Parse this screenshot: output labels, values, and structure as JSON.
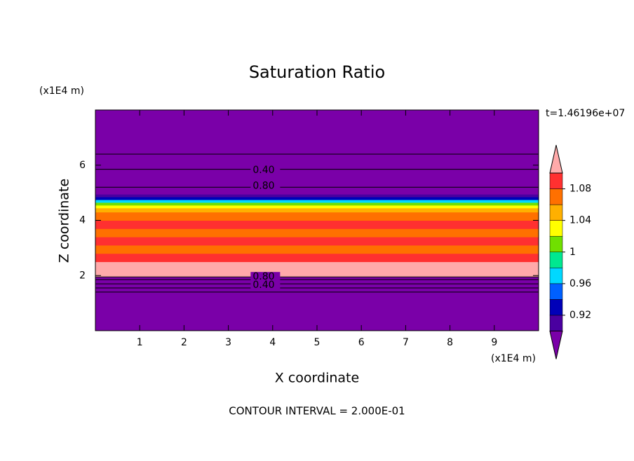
{
  "chart_data": {
    "type": "contour",
    "title": "Saturation Ratio",
    "xlabel": "X coordinate",
    "ylabel": "Z coordinate",
    "x_unit": "(x1E4 m)",
    "y_unit": "(x1E4 m)",
    "time_label": "t=1.46196e+07",
    "footer": "CONTOUR INTERVAL = 2.000E-01",
    "xlim": [
      0,
      10
    ],
    "ylim": [
      0,
      8
    ],
    "xticks": [
      1,
      2,
      3,
      4,
      5,
      6,
      7,
      8,
      9
    ],
    "yticks": [
      2,
      4,
      6
    ],
    "profile": {
      "z_edges": [
        0,
        1.95,
        2.05,
        2.5,
        2.8,
        3.1,
        3.4,
        3.7,
        4.0,
        4.3,
        4.45,
        4.55,
        4.65,
        4.75,
        4.85,
        4.95,
        8
      ],
      "values": [
        0.5,
        1.11,
        1.12,
        1.09,
        1.07,
        1.09,
        1.07,
        1.09,
        1.07,
        1.05,
        1.03,
        1.01,
        0.97,
        0.93,
        0.91,
        0.5
      ]
    },
    "contour_lines": [
      1.4,
      1.55,
      1.7,
      1.85,
      1.95,
      5.2,
      5.85,
      6.4
    ],
    "contour_labels": [
      {
        "text": "0.40",
        "x": 3.55,
        "z": 5.82
      },
      {
        "text": "0.80",
        "x": 3.55,
        "z": 5.24
      },
      {
        "text": "0.80",
        "x": 3.55,
        "z": 1.95
      },
      {
        "text": "0.40",
        "x": 3.55,
        "z": 1.65
      }
    ],
    "colorbar": {
      "levels": [
        0.9,
        0.92,
        0.94,
        0.96,
        0.98,
        1,
        1.02,
        1.04,
        1.06,
        1.08,
        1.1
      ],
      "colors": [
        "#7a00a8",
        "#4a00a0",
        "#0000b8",
        "#0060ff",
        "#00d8ff",
        "#00e890",
        "#70e000",
        "#ffff00",
        "#ffb000",
        "#ff7000",
        "#ff3030",
        "#ffaaaa"
      ],
      "ticks": [
        0.92,
        0.96,
        1,
        1.04,
        1.08
      ]
    }
  }
}
